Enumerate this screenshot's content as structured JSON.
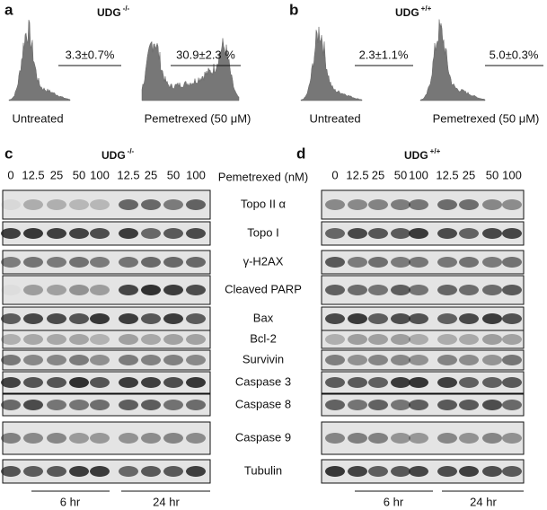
{
  "panels": {
    "a": {
      "label": "a",
      "genotype": "UDG",
      "genotype_sup": "-/-",
      "histograms": [
        {
          "percent": "3.3±0.7%",
          "caption": "Untreated"
        },
        {
          "percent": "30.9±2.3 %",
          "caption": "Pemetrexed (50 μM)"
        }
      ]
    },
    "b": {
      "label": "b",
      "genotype": "UDG",
      "genotype_sup": "+/+",
      "histograms": [
        {
          "percent": "2.3±1.1%",
          "caption": "Untreated"
        },
        {
          "percent": "5.0±0.3%",
          "caption": "Pemetrexed (50 μM)"
        }
      ]
    },
    "c": {
      "label": "c",
      "genotype": "UDG",
      "genotype_sup": "-/-",
      "lanes": [
        "0",
        "12.5",
        "25",
        "50",
        "100",
        "12.5",
        "25",
        "50",
        "100"
      ],
      "times": [
        "6 hr",
        "24 hr"
      ]
    },
    "d": {
      "label": "d",
      "genotype": "UDG",
      "genotype_sup": "+/+",
      "lanes": [
        "0",
        "12.5",
        "25",
        "50",
        "100",
        "12.5",
        "25",
        "50",
        "100"
      ],
      "times": [
        "6 hr",
        "24 hr"
      ]
    }
  },
  "treatment_label": "Pemetrexed (nM)",
  "proteins": [
    "Topo II α",
    "Topo I",
    "γ-H2AX",
    "Cleaved PARP",
    "Bax",
    "Bcl-2",
    "Survivin",
    "Caspase 3",
    "Caspase 8",
    "Caspase 9",
    "Tubulin"
  ]
}
